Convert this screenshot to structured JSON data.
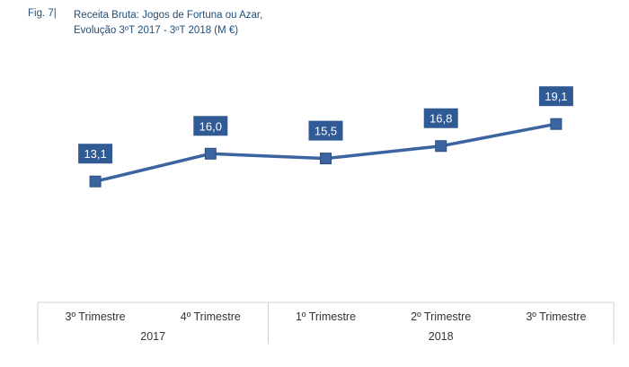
{
  "figure_label": "Fig. 7|",
  "chart_data": {
    "type": "line",
    "title": "Receita Bruta: Jogos de Fortuna ou Azar,",
    "subtitle": "Evolução 3ºT 2017 - 3ºT 2018 (M €)",
    "categories": [
      "3º Trimestre",
      "4º Trimestre",
      "1º Trimestre",
      "2º Trimestre",
      "3º Trimestre"
    ],
    "groups": [
      {
        "label": "2017",
        "count": 2
      },
      {
        "label": "2018",
        "count": 3
      }
    ],
    "values": [
      13.1,
      16.0,
      15.5,
      16.8,
      19.1
    ],
    "data_labels": [
      "13,1",
      "16,0",
      "15,5",
      "16,8",
      "19,1"
    ],
    "ylim": [
      0,
      25
    ],
    "grid": false,
    "legend": "none",
    "colors": {
      "line": "#3b64a0",
      "marker": "#3b64a0",
      "label_bg": "#2f5a94",
      "title": "#1f4e79"
    }
  }
}
